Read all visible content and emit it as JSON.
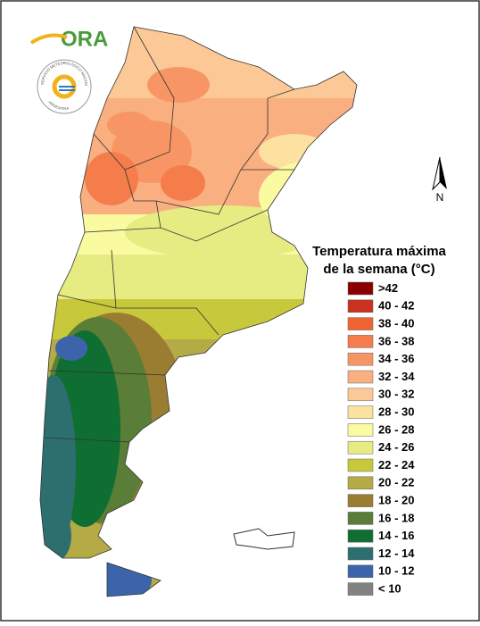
{
  "logo": {
    "text": "ORA",
    "seal_top": "SERVICIO METEOROLÓGICO NACIONAL",
    "seal_bottom": "ARGENTINA"
  },
  "compass": "N",
  "legend": {
    "title": [
      "Temperatura máxima",
      "de la semana (°C)"
    ],
    "items": [
      {
        "label": ">42",
        "color": "#8b0000"
      },
      {
        "label": "40 - 42",
        "color": "#c8321e"
      },
      {
        "label": "38 - 40",
        "color": "#f06432"
      },
      {
        "label": "36 - 38",
        "color": "#f57d4b"
      },
      {
        "label": "34 - 36",
        "color": "#f79664"
      },
      {
        "label": "32 - 34",
        "color": "#f9af80"
      },
      {
        "label": "30 - 32",
        "color": "#fbc896"
      },
      {
        "label": "28 - 30",
        "color": "#fde1a0"
      },
      {
        "label": "26 - 28",
        "color": "#fafaa0"
      },
      {
        "label": "24 - 26",
        "color": "#e6eb82"
      },
      {
        "label": "22 - 24",
        "color": "#c8c83c"
      },
      {
        "label": "20 - 22",
        "color": "#b4aa46"
      },
      {
        "label": "18 - 20",
        "color": "#9b7d32"
      },
      {
        "label": "16 - 18",
        "color": "#5a7d37"
      },
      {
        "label": "14 - 16",
        "color": "#0f6e32"
      },
      {
        "label": "12 - 14",
        "color": "#2d6e6e"
      },
      {
        "label": "10 - 12",
        "color": "#3c64aa"
      },
      {
        "label": "< 10",
        "color": "#828282"
      }
    ]
  }
}
